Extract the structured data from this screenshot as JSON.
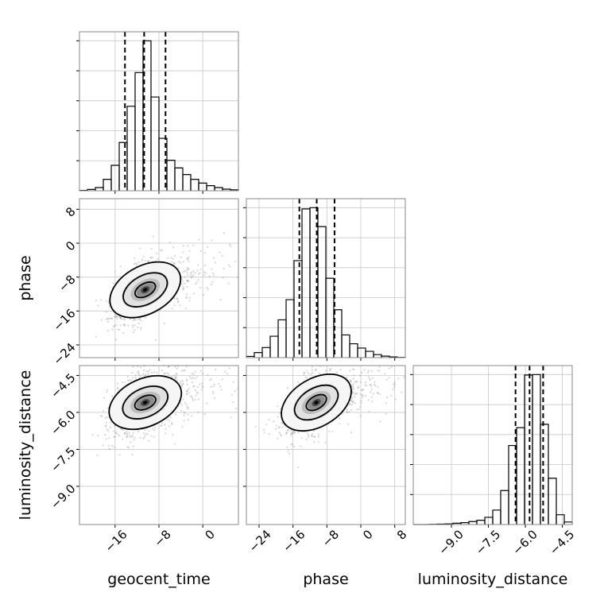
{
  "colors": {
    "line": "#000000",
    "frame": "#888888",
    "grid": "#c8c8c8",
    "points": "#8a8a8a",
    "density_levels": [
      "#f6f6f6",
      "#e2e2e2",
      "#bdbdbd",
      "#8c8c8c",
      "#4a4a4a",
      "#000000"
    ]
  },
  "chart_data": {
    "type": "corner",
    "parameters": [
      "geocent_time",
      "phase",
      "luminosity_distance"
    ],
    "axis_labels": {
      "geocent_time": "geocent_time",
      "phase": "phase",
      "luminosity_distance": "luminosity_distance"
    },
    "ranges": {
      "geocent_time": [
        -22.5,
        6.5
      ],
      "phase": [
        -27.0,
        10.5
      ],
      "luminosity_distance": [
        -10.55,
        -4.1
      ]
    },
    "ticks": {
      "geocent_time": [
        -16,
        -8,
        0
      ],
      "phase": [
        -24,
        -16,
        -8,
        0,
        8
      ],
      "luminosity_distance": [
        -9.0,
        -7.5,
        -6.0,
        -4.5
      ]
    },
    "tick_labels": {
      "geocent_time": [
        "−16",
        "−8",
        "0"
      ],
      "phase": [
        "−24",
        "−16",
        "−8",
        "0",
        "8"
      ],
      "luminosity_distance": [
        "−9.0",
        "−7.5",
        "−6.0",
        "−4.5"
      ]
    },
    "quantiles": {
      "geocent_time": [
        -14.2,
        -10.7,
        -6.8
      ],
      "phase": [
        -14.5,
        -10.4,
        -6.2
      ],
      "luminosity_distance": [
        -6.4,
        -5.83,
        -5.28
      ]
    },
    "histograms": {
      "geocent_time": {
        "bin_edges": [
          -22.5,
          -21.05,
          -19.6,
          -18.15,
          -16.7,
          -15.25,
          -13.8,
          -12.35,
          -10.9,
          -9.45,
          -8.0,
          -6.55,
          -5.1,
          -3.65,
          -2.2,
          -0.75,
          0.7,
          2.15,
          3.6,
          5.05,
          6.5
        ],
        "counts": [
          1,
          4,
          10,
          36,
          80,
          152,
          266,
          372,
          472,
          295,
          165,
          96,
          72,
          51,
          36,
          24,
          16,
          10,
          5,
          3
        ]
      },
      "phase": {
        "bin_edges": [
          -27.0,
          -25.125,
          -23.25,
          -21.375,
          -19.5,
          -17.625,
          -15.75,
          -13.875,
          -12.0,
          -10.125,
          -8.25,
          -6.375,
          -4.5,
          -2.625,
          -0.75,
          1.125,
          3.0,
          4.875,
          6.75,
          8.625,
          10.5
        ],
        "counts": [
          5,
          20,
          40,
          85,
          150,
          230,
          385,
          590,
          595,
          520,
          315,
          190,
          90,
          55,
          38,
          25,
          12,
          6,
          3,
          1
        ]
      },
      "luminosity_distance": {
        "bin_edges": [
          -10.55,
          -10.2275,
          -9.905,
          -9.5825,
          -9.26,
          -8.9375,
          -8.615,
          -8.2925,
          -7.97,
          -7.6475,
          -7.325,
          -7.0025,
          -6.68,
          -6.3575,
          -6.035,
          -5.7125,
          -5.39,
          -5.0675,
          -4.745,
          -4.4225,
          -4.1
        ],
        "counts": [
          0,
          0,
          1,
          2,
          3,
          6,
          9,
          14,
          20,
          34,
          68,
          160,
          372,
          456,
          704,
          706,
          472,
          218,
          46,
          12
        ]
      }
    },
    "pairs": [
      {
        "x": "geocent_time",
        "y": "phase",
        "correlation": 0.55,
        "density_peak": [
          -10.5,
          -11.0
        ]
      },
      {
        "x": "geocent_time",
        "y": "luminosity_distance",
        "correlation": 0.45,
        "density_peak": [
          -10.5,
          -5.6
        ]
      },
      {
        "x": "phase",
        "y": "luminosity_distance",
        "correlation": 0.6,
        "density_peak": [
          -10.5,
          -5.6
        ]
      }
    ]
  }
}
